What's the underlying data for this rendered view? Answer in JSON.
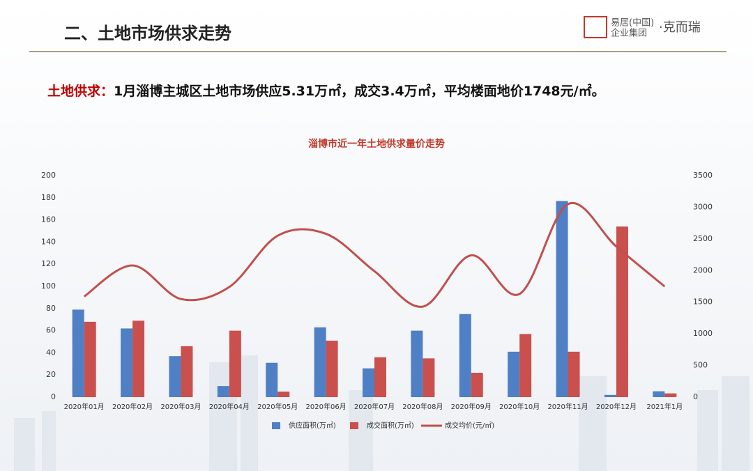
{
  "header": {
    "title": "二、土地市场供求走势",
    "logo_line1": "易居(中国)",
    "logo_line2": "企业集团",
    "logo_brand": "·克而瑞"
  },
  "summary": {
    "label": "土地供求：",
    "text": "1月淄博主城区土地市场供应5.31万㎡，成交3.4万㎡，平均楼面地价1748元/㎡。"
  },
  "chart_data": {
    "type": "bar",
    "title": "淄博市近一年土地供求量价走势",
    "categories": [
      "2020年01月",
      "2020年02月",
      "2020年03月",
      "2020年04月",
      "2020年05月",
      "2020年06月",
      "2020年07月",
      "2020年08月",
      "2020年09月",
      "2020年10月",
      "2020年11月",
      "2020年12月",
      "2021年1月"
    ],
    "series": [
      {
        "name": "供应面积(万㎡)",
        "color": "#4f7fc4",
        "type": "bar",
        "values": [
          79,
          62,
          37,
          10,
          31,
          63,
          26,
          60,
          75,
          41,
          177,
          2,
          5.31
        ]
      },
      {
        "name": "成交面积(万㎡)",
        "color": "#c9504d",
        "type": "bar",
        "values": [
          68,
          69,
          46,
          60,
          5,
          51,
          36,
          35,
          22,
          57,
          41,
          154,
          3.4
        ]
      },
      {
        "name": "成交均价(元/㎡)",
        "color": "#c0504d",
        "type": "line",
        "axis": "y2",
        "values": [
          1590,
          2080,
          1550,
          1740,
          2550,
          2580,
          1990,
          1430,
          2240,
          1630,
          3050,
          2380,
          1748
        ]
      }
    ],
    "ylim": [
      0,
      200
    ],
    "yticks": [
      0,
      20,
      40,
      60,
      80,
      100,
      120,
      140,
      160,
      180,
      200
    ],
    "y2lim": [
      0,
      3500
    ],
    "y2ticks": [
      0,
      500,
      1000,
      1500,
      2000,
      2500,
      3000,
      3500
    ],
    "legend": "bottom"
  }
}
